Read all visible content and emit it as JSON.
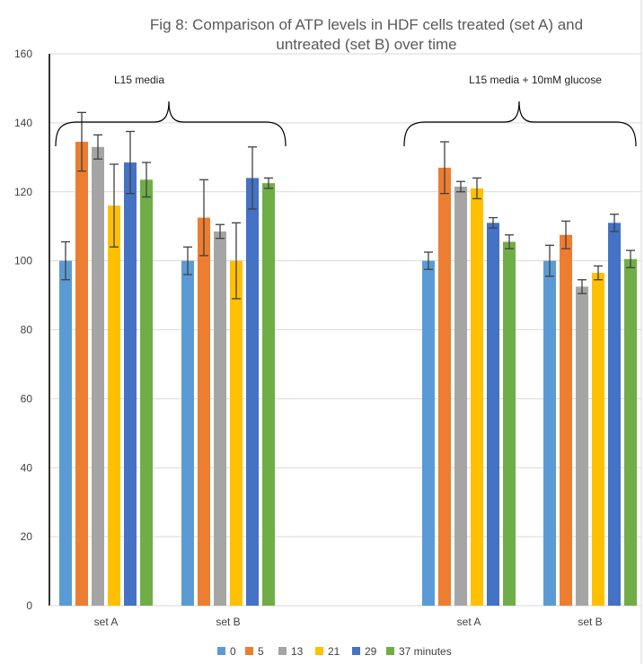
{
  "chart_data": {
    "type": "bar",
    "title_lines": [
      "Fig 8: Comparison of ATP levels in HDF cells treated (set A) and",
      "untreated (set B) over time"
    ],
    "categories": [
      "set A",
      "set B",
      "set A",
      "set B"
    ],
    "series": [
      {
        "name": "0",
        "color": "#5B9BD5",
        "values": [
          100,
          100,
          100,
          100
        ],
        "errors": [
          5.5,
          4,
          2.5,
          4.5
        ]
      },
      {
        "name": "5",
        "color": "#ED7D31",
        "values": [
          134.5,
          112.5,
          127,
          107.5
        ],
        "errors": [
          8.5,
          11,
          7.5,
          4
        ]
      },
      {
        "name": "13",
        "color": "#A5A5A5",
        "values": [
          133,
          108.5,
          121.5,
          92.5
        ],
        "errors": [
          3.5,
          2,
          1.5,
          2
        ]
      },
      {
        "name": "21",
        "color": "#FFC000",
        "values": [
          116,
          100,
          121,
          96.5
        ],
        "errors": [
          12,
          11,
          3,
          2
        ]
      },
      {
        "name": "29",
        "color": "#4472C4",
        "values": [
          128.5,
          124,
          111,
          111
        ],
        "errors": [
          9,
          9,
          1.5,
          2.5
        ]
      },
      {
        "name": "37 minutes",
        "color": "#70AD47",
        "values": [
          123.5,
          122.5,
          105.5,
          100.5
        ],
        "errors": [
          5,
          1.5,
          2,
          2.5
        ]
      }
    ],
    "ylim": [
      0,
      160
    ],
    "yticks": [
      0,
      20,
      40,
      60,
      80,
      100,
      120,
      140,
      160
    ],
    "grid": true,
    "legend": "bottom",
    "annotations": [
      {
        "text": "L15 media"
      },
      {
        "text": "L15 media + 10mM glucose"
      }
    ]
  }
}
